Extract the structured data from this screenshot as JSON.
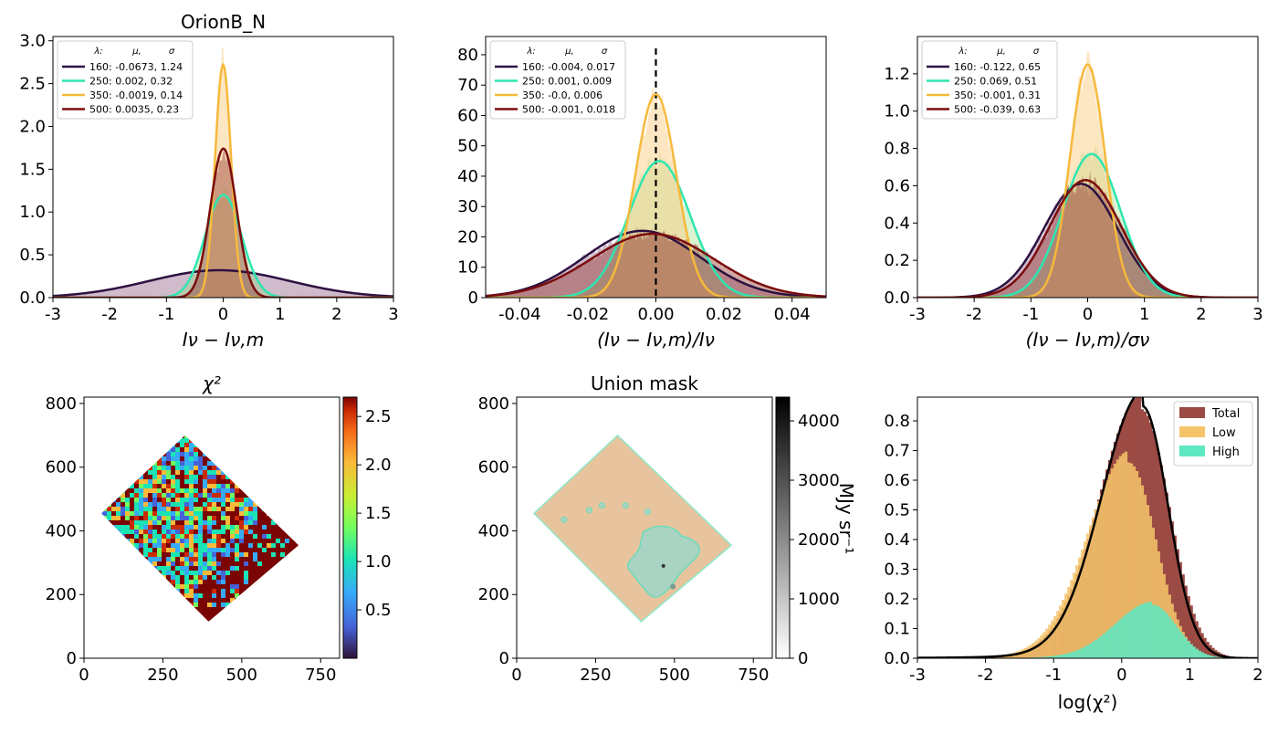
{
  "figure": {
    "panel_a": {
      "title": "OrionB_N",
      "xlabel": "Iν − Iν,m",
      "legend_header": [
        "λ:",
        "μ,",
        "σ"
      ],
      "legend": [
        {
          "label": "160: -0.0673,  1.24",
          "color": "#2d1140"
        },
        {
          "label": "250: 0.002,  0.32",
          "color": "#2ee6b0"
        },
        {
          "label": "350: -0.0019,  0.14",
          "color": "#f6b93b"
        },
        {
          "label": "500: 0.0035,  0.23",
          "color": "#7a0d0d"
        }
      ]
    },
    "panel_b": {
      "title": "",
      "xlabel": "(Iν − Iν,m)/Iν",
      "legend_header": [
        "λ:",
        "μ,",
        "σ"
      ],
      "legend": [
        {
          "label": "160: -0.004,  0.017",
          "color": "#2d1140"
        },
        {
          "label": "250: 0.001,  0.009",
          "color": "#2ee6b0"
        },
        {
          "label": "350: -0.0,  0.006",
          "color": "#f6b93b"
        },
        {
          "label": "500: -0.001,  0.018",
          "color": "#7a0d0d"
        }
      ]
    },
    "panel_c": {
      "title": "",
      "xlabel": "(Iν − Iν,m)/σν",
      "legend_header": [
        "λ:",
        "μ,",
        "σ"
      ],
      "legend": [
        {
          "label": "160: -0.122,  0.65",
          "color": "#2d1140"
        },
        {
          "label": "250: 0.069,  0.51",
          "color": "#2ee6b0"
        },
        {
          "label": "350: -0.001,  0.31",
          "color": "#f6b93b"
        },
        {
          "label": "500: -0.039,  0.63",
          "color": "#7a0d0d"
        }
      ]
    },
    "panel_d": {
      "title": "χ²",
      "colorbar_ticks": [
        "0.5",
        "1.0",
        "1.5",
        "2.0",
        "2.5"
      ]
    },
    "panel_e": {
      "title": "Union mask",
      "colorbar_label": "MJy sr⁻¹",
      "colorbar_ticks": [
        "0",
        "1000",
        "2000",
        "3000",
        "4000"
      ]
    },
    "panel_f": {
      "xlabel": "log(χ²)",
      "legend": [
        {
          "label": "Total",
          "color": "#9b4a44"
        },
        {
          "label": "Low",
          "color": "#f5c46a"
        },
        {
          "label": "High",
          "color": "#5fe8c2"
        }
      ]
    }
  },
  "chart_data": [
    {
      "type": "line",
      "panel": "top-left",
      "title": "OrionB_N",
      "xlabel": "Iν − Iν,m",
      "xlim": [
        -3,
        3
      ],
      "ylim": [
        0,
        3.05
      ],
      "xticks": [
        -3,
        -2,
        -1,
        0,
        1,
        2,
        3
      ],
      "yticks": [
        0.0,
        0.5,
        1.0,
        1.5,
        2.0,
        2.5,
        3.0
      ],
      "series": [
        {
          "name": "160",
          "mu": -0.0673,
          "sigma": 1.24,
          "peak": 0.32,
          "color": "#2d1140"
        },
        {
          "name": "250",
          "mu": 0.002,
          "sigma": 0.32,
          "peak": 1.2,
          "color": "#2ee6b0"
        },
        {
          "name": "350",
          "mu": -0.0019,
          "sigma": 0.14,
          "peak": 2.72,
          "color": "#f6b93b"
        },
        {
          "name": "500",
          "mu": 0.0035,
          "sigma": 0.23,
          "peak": 1.74,
          "color": "#7a0d0d"
        }
      ]
    },
    {
      "type": "line",
      "panel": "top-center",
      "xlabel": "(Iν − Iν,m)/Iν",
      "xlim": [
        -0.05,
        0.05
      ],
      "ylim": [
        0,
        86
      ],
      "xticks": [
        -0.04,
        -0.02,
        0.0,
        0.02,
        0.04
      ],
      "yticks": [
        0,
        10,
        20,
        30,
        40,
        50,
        60,
        70,
        80
      ],
      "vline": 0.0,
      "series": [
        {
          "name": "160",
          "mu": -0.004,
          "sigma": 0.017,
          "peak": 22,
          "color": "#2d1140"
        },
        {
          "name": "250",
          "mu": 0.001,
          "sigma": 0.009,
          "peak": 45,
          "color": "#2ee6b0"
        },
        {
          "name": "350",
          "mu": 0.0,
          "sigma": 0.006,
          "peak": 67,
          "color": "#f6b93b"
        },
        {
          "name": "500",
          "mu": -0.001,
          "sigma": 0.018,
          "peak": 21,
          "color": "#7a0d0d"
        }
      ]
    },
    {
      "type": "line",
      "panel": "top-right",
      "xlabel": "(Iν − Iν,m)/σν",
      "xlim": [
        -3,
        3
      ],
      "ylim": [
        0,
        1.4
      ],
      "xticks": [
        -3,
        -2,
        -1,
        0,
        1,
        2,
        3
      ],
      "yticks": [
        0.0,
        0.2,
        0.4,
        0.6,
        0.8,
        1.0,
        1.2
      ],
      "series": [
        {
          "name": "160",
          "mu": -0.122,
          "sigma": 0.65,
          "peak": 0.61,
          "color": "#2d1140"
        },
        {
          "name": "250",
          "mu": 0.069,
          "sigma": 0.51,
          "peak": 0.77,
          "color": "#2ee6b0"
        },
        {
          "name": "350",
          "mu": -0.001,
          "sigma": 0.31,
          "peak": 1.25,
          "color": "#f6b93b"
        },
        {
          "name": "500",
          "mu": -0.039,
          "sigma": 0.63,
          "peak": 0.63,
          "color": "#7a0d0d"
        }
      ]
    },
    {
      "type": "heatmap",
      "panel": "bottom-left",
      "title": "χ²",
      "xlim": [
        0,
        810
      ],
      "ylim": [
        0,
        820
      ],
      "xticks": [
        0,
        250,
        500,
        750
      ],
      "yticks": [
        0,
        200,
        400,
        600,
        800
      ],
      "footprint": [
        [
          320,
          700
        ],
        [
          680,
          355
        ],
        [
          395,
          115
        ],
        [
          55,
          455
        ]
      ],
      "colorbar": {
        "min": 0.0,
        "max": 2.7,
        "ticks": [
          0.5,
          1.0,
          1.5,
          2.0,
          2.5
        ],
        "colormap": "turbo"
      }
    },
    {
      "type": "heatmap",
      "panel": "bottom-center",
      "title": "Union mask",
      "xlim": [
        0,
        810
      ],
      "ylim": [
        0,
        820
      ],
      "xticks": [
        0,
        250,
        500,
        750
      ],
      "yticks": [
        0,
        200,
        400,
        600,
        800
      ],
      "footprint": [
        [
          320,
          700
        ],
        [
          680,
          355
        ],
        [
          395,
          115
        ],
        [
          55,
          455
        ]
      ],
      "colorbar": {
        "min": 0,
        "max": 4400,
        "ticks": [
          0,
          1000,
          2000,
          3000,
          4000
        ],
        "label": "MJy sr⁻¹",
        "colormap": "gray_r"
      }
    },
    {
      "type": "bar",
      "panel": "bottom-right",
      "xlabel": "log(χ²)",
      "xlim": [
        -3,
        2
      ],
      "ylim": [
        0,
        0.88
      ],
      "xticks": [
        -3,
        -2,
        -1,
        0,
        1,
        2
      ],
      "yticks": [
        0.0,
        0.1,
        0.2,
        0.3,
        0.4,
        0.5,
        0.6,
        0.7,
        0.8
      ],
      "series": [
        {
          "name": "Total",
          "peak": 0.84,
          "peak_x": 0.28,
          "color": "#9b4a44"
        },
        {
          "name": "Low",
          "peak": 0.66,
          "peak_x": 0.1,
          "color": "#f5c46a"
        },
        {
          "name": "High",
          "peak": 0.18,
          "peak_x": 0.45,
          "color": "#5fe8c2"
        }
      ],
      "curve": {
        "peak": 0.85,
        "peak_x": 0.3,
        "color": "#000000"
      }
    }
  ]
}
